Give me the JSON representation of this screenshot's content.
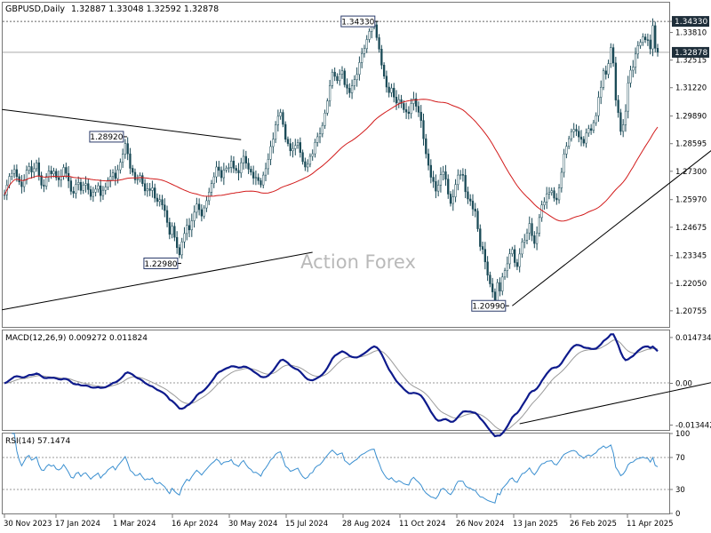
{
  "chart_data": {
    "type": "line",
    "title": "GBPUSD,Daily",
    "ohlc_header": "1.32887 1.33048 1.32592 1.32878",
    "watermark": "Action Forex",
    "x_ticks": [
      "30 Nov 2023",
      "17 Jan 2024",
      "1 Mar 2024",
      "16 Apr 2024",
      "30 May 2024",
      "15 Jul 2024",
      "28 Aug 2024",
      "11 Oct 2024",
      "26 Nov 2024",
      "13 Jan 2025",
      "26 Feb 2025",
      "11 Apr 2025"
    ],
    "price": {
      "ylim": [
        1.2,
        1.35
      ],
      "y_ticks": [
        "1.34330",
        "1.33810",
        "1.32515",
        "1.31220",
        "1.29890",
        "1.28595",
        "1.27300",
        "1.25970",
        "1.24675",
        "1.23345",
        "1.22050",
        "1.20755"
      ],
      "y_tick_values": [
        1.3433,
        1.3381,
        1.32515,
        1.3122,
        1.2989,
        1.28595,
        1.273,
        1.2597,
        1.24675,
        1.23345,
        1.2205,
        1.20755
      ],
      "current_price": "1.32878",
      "current_value": 1.32878,
      "annotations": [
        {
          "label": "1.34330",
          "value": 1.3433,
          "bar": 151
        },
        {
          "label": "1.28920",
          "value": 1.2892,
          "bar": 49
        },
        {
          "label": "1.22980",
          "value": 1.2298,
          "bar": 71
        },
        {
          "label": "1.20990",
          "value": 1.2099,
          "bar": 204
        }
      ],
      "closes": [
        1.262,
        1.2665,
        1.2706,
        1.272,
        1.2738,
        1.2705,
        1.268,
        1.2658,
        1.269,
        1.2735,
        1.2752,
        1.2726,
        1.2742,
        1.277,
        1.271,
        1.2665,
        1.266,
        1.2705,
        1.2732,
        1.2718,
        1.273,
        1.27,
        1.269,
        1.2705,
        1.2748,
        1.272,
        1.2685,
        1.2636,
        1.2627,
        1.2668,
        1.2678,
        1.264,
        1.2665,
        1.2672,
        1.2644,
        1.2612,
        1.2632,
        1.2646,
        1.2662,
        1.2616,
        1.2641,
        1.2656,
        1.2688,
        1.2705,
        1.2722,
        1.2696,
        1.2737,
        1.2772,
        1.281,
        1.286,
        1.2812,
        1.2744,
        1.2725,
        1.269,
        1.2692,
        1.271,
        1.2672,
        1.2638,
        1.2648,
        1.264,
        1.2652,
        1.2604,
        1.2588,
        1.2597,
        1.2572,
        1.2546,
        1.249,
        1.2434,
        1.2472,
        1.242,
        1.2372,
        1.2338,
        1.2399,
        1.2438,
        1.2476,
        1.2455,
        1.2498,
        1.2538,
        1.2576,
        1.255,
        1.252,
        1.2558,
        1.2592,
        1.2632,
        1.2672,
        1.2704,
        1.275,
        1.2734,
        1.27,
        1.2736,
        1.2744,
        1.2748,
        1.2778,
        1.2744,
        1.2734,
        1.2722,
        1.277,
        1.28,
        1.2768,
        1.274,
        1.2726,
        1.2698,
        1.2701,
        1.2686,
        1.2666,
        1.2712,
        1.2742,
        1.2786,
        1.2846,
        1.288,
        1.2948,
        1.2988,
        1.3006,
        1.295,
        1.288,
        1.286,
        1.2826,
        1.2836,
        1.2851,
        1.2865,
        1.2818,
        1.2775,
        1.275,
        1.2763,
        1.28,
        1.2812,
        1.2865,
        1.2892,
        1.2905,
        1.2945,
        1.3003,
        1.306,
        1.3132,
        1.3195,
        1.3175,
        1.3155,
        1.3185,
        1.3201,
        1.3136,
        1.312,
        1.3098,
        1.3131,
        1.316,
        1.3184,
        1.324,
        1.3282,
        1.3305,
        1.3348,
        1.3386,
        1.341,
        1.3417,
        1.3357,
        1.3303,
        1.3228,
        1.3176,
        1.3125,
        1.3099,
        1.312,
        1.3078,
        1.305,
        1.3066,
        1.3048,
        1.3019,
        1.3008,
        1.3001,
        1.3048,
        1.307,
        1.3035,
        1.3007,
        1.2968,
        1.2883,
        1.2812,
        1.2758,
        1.2702,
        1.2682,
        1.2637,
        1.2665,
        1.2714,
        1.2728,
        1.2693,
        1.2623,
        1.2579,
        1.261,
        1.2668,
        1.2712,
        1.2715,
        1.2711,
        1.2634,
        1.26,
        1.259,
        1.2553,
        1.2543,
        1.246,
        1.2377,
        1.2364,
        1.2305,
        1.2243,
        1.2202,
        1.2164,
        1.2122,
        1.2208,
        1.2168,
        1.2234,
        1.2264,
        1.2296,
        1.2343,
        1.2363,
        1.2302,
        1.2283,
        1.2342,
        1.2398,
        1.2407,
        1.2441,
        1.2485,
        1.2428,
        1.2391,
        1.244,
        1.2513,
        1.2572,
        1.2586,
        1.2624,
        1.263,
        1.2639,
        1.2604,
        1.2596,
        1.2652,
        1.2725,
        1.2811,
        1.2847,
        1.2883,
        1.2916,
        1.2927,
        1.2918,
        1.2891,
        1.288,
        1.2862,
        1.2909,
        1.293,
        1.2922,
        1.2958,
        1.2991,
        1.3077,
        1.3124,
        1.3201,
        1.3185,
        1.3235,
        1.331,
        1.3238,
        1.3064,
        1.3005,
        1.2917,
        1.2948,
        1.3012,
        1.3144,
        1.3204,
        1.3218,
        1.328,
        1.3319,
        1.3335,
        1.336,
        1.3347,
        1.3346,
        1.3304,
        1.3413,
        1.3307,
        1.3288
      ]
    },
    "macd": {
      "label": "MACD(12,26,9) 0.009272 0.011824",
      "ylim": [
        -0.015,
        0.017
      ],
      "y_ticks": [
        "0.014734",
        "0.00",
        "-0.013442"
      ],
      "y_tick_values": [
        0.014734,
        0.0,
        -0.013442
      ]
    },
    "rsi": {
      "label": "RSI(14) 57.1474",
      "ylim": [
        0,
        100
      ],
      "y_ticks": [
        "100",
        "70",
        "30",
        "0"
      ],
      "y_tick_values": [
        100,
        70,
        30,
        0
      ],
      "levels": [
        70,
        30
      ]
    },
    "trendlines": [
      {
        "series": "price",
        "from": [
          -1,
          1.302
        ],
        "to": [
          96,
          1.2878
        ]
      },
      {
        "series": "price",
        "from": [
          -1,
          1.208
        ],
        "to": [
          125,
          1.235
        ]
      },
      {
        "series": "price",
        "from": [
          206,
          1.2099
        ],
        "to": [
          307,
          1.301
        ]
      },
      {
        "series": "macd",
        "from": [
          209,
          -0.013
        ],
        "to": [
          306,
          0.0035
        ]
      }
    ],
    "colors": {
      "candle": "#1a4a57",
      "ma": "#d21b1b",
      "macd_main": "#0d1a8c",
      "macd_signal": "#9a9a9a",
      "rsi": "#3a8fd0",
      "label_bg": "#1e2e3a"
    },
    "legend": "none",
    "grid": false
  }
}
